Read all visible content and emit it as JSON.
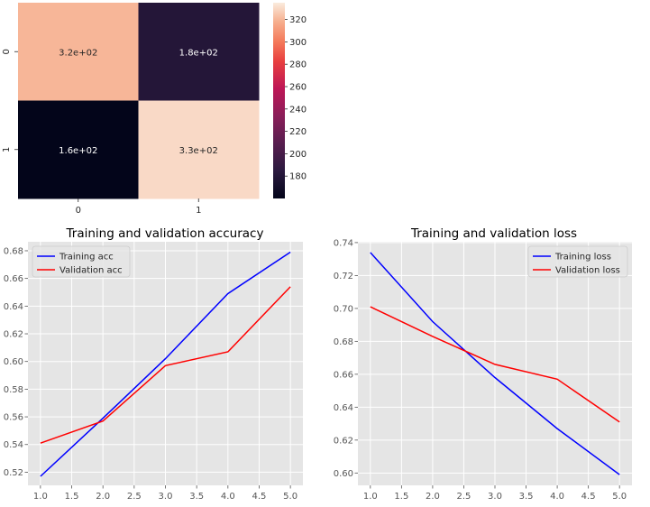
{
  "chart_data": [
    {
      "type": "heatmap",
      "xticks": [
        "0",
        "1"
      ],
      "yticks": [
        "0",
        "1"
      ],
      "values": [
        [
          320,
          180
        ],
        [
          160,
          330
        ]
      ],
      "annotations": [
        [
          "3.2e+02",
          "1.8e+02"
        ],
        [
          "1.6e+02",
          "3.3e+02"
        ]
      ],
      "colorbar": {
        "range": [
          160,
          335
        ],
        "ticks": [
          "180",
          "200",
          "220",
          "240",
          "260",
          "280",
          "300",
          "320"
        ]
      }
    },
    {
      "type": "line",
      "title": "Training and validation accuracy",
      "x": [
        1,
        2,
        3,
        4,
        5
      ],
      "xticks": [
        "1.0",
        "1.5",
        "2.0",
        "2.5",
        "3.0",
        "3.5",
        "4.0",
        "4.5",
        "5.0"
      ],
      "yticks": [
        "0.52",
        "0.54",
        "0.56",
        "0.58",
        "0.60",
        "0.62",
        "0.64",
        "0.66",
        "0.68"
      ],
      "xlim": [
        0.8,
        5.2
      ],
      "ylim": [
        0.5105,
        0.6865
      ],
      "legend": "top-left",
      "grid": true,
      "series": [
        {
          "name": "Training acc",
          "color": "#0000ff",
          "values": [
            0.517,
            0.559,
            0.602,
            0.649,
            0.679
          ]
        },
        {
          "name": "Validation acc",
          "color": "#ff0000",
          "values": [
            0.541,
            0.557,
            0.597,
            0.607,
            0.654
          ]
        }
      ]
    },
    {
      "type": "line",
      "title": "Training and validation loss",
      "x": [
        1,
        2,
        3,
        4,
        5
      ],
      "xticks": [
        "1.0",
        "1.5",
        "2.0",
        "2.5",
        "3.0",
        "3.5",
        "4.0",
        "4.5",
        "5.0"
      ],
      "yticks": [
        "0.60",
        "0.62",
        "0.64",
        "0.66",
        "0.68",
        "0.70",
        "0.72",
        "0.74"
      ],
      "xlim": [
        0.8,
        5.2
      ],
      "ylim": [
        0.5925,
        0.7405
      ],
      "legend": "top-right",
      "grid": true,
      "series": [
        {
          "name": "Training loss",
          "color": "#0000ff",
          "values": [
            0.734,
            0.692,
            0.658,
            0.627,
            0.599
          ]
        },
        {
          "name": "Validation loss",
          "color": "#ff0000",
          "values": [
            0.701,
            0.683,
            0.666,
            0.657,
            0.631
          ]
        }
      ]
    }
  ]
}
